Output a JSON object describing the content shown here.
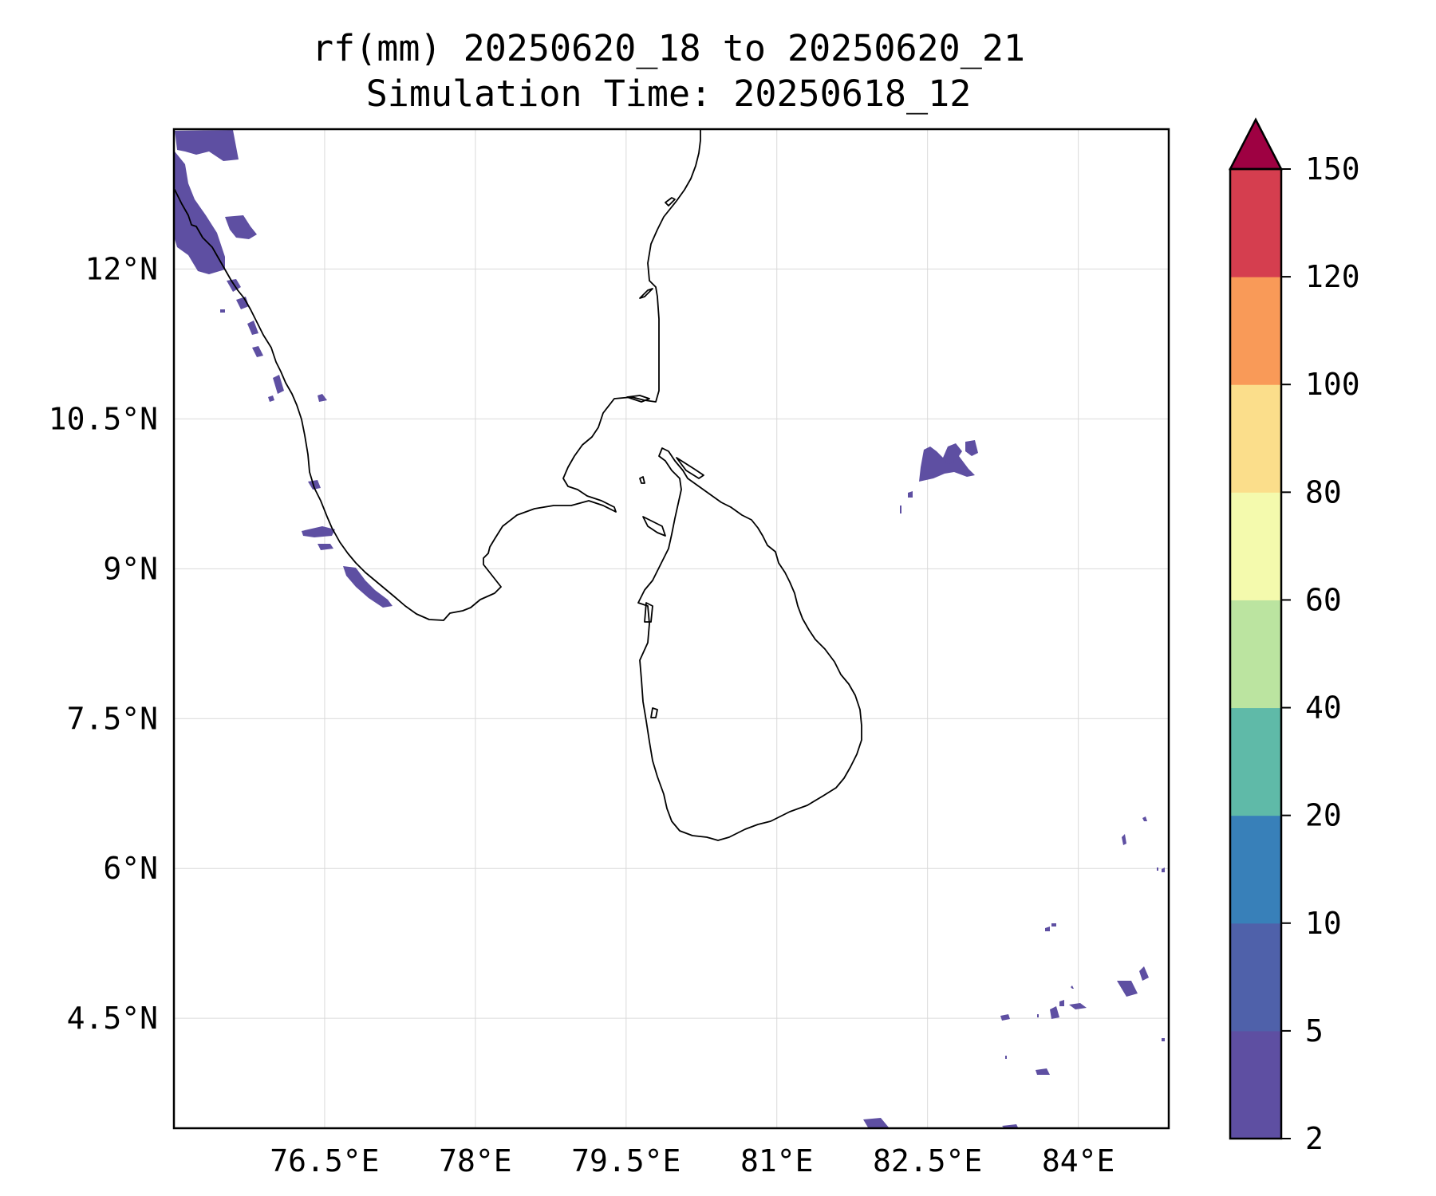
{
  "title": {
    "line1": "rf(mm) 20250620_18 to 20250620_21",
    "line2": "Simulation Time: 20250618_12"
  },
  "map": {
    "lon_range": [
      75.0,
      84.9
    ],
    "lat_range": [
      3.4,
      13.4
    ],
    "lon_ticks": [
      {
        "value": 76.5,
        "label": "76.5°E"
      },
      {
        "value": 78.0,
        "label": "78°E"
      },
      {
        "value": 79.5,
        "label": "79.5°E"
      },
      {
        "value": 81.0,
        "label": "81°E"
      },
      {
        "value": 82.5,
        "label": "82.5°E"
      },
      {
        "value": 84.0,
        "label": "84°E"
      }
    ],
    "lat_ticks": [
      {
        "value": 12.0,
        "label": "12°N"
      },
      {
        "value": 10.5,
        "label": "10.5°N"
      },
      {
        "value": 9.0,
        "label": "9°N"
      },
      {
        "value": 7.5,
        "label": "7.5°N"
      },
      {
        "value": 6.0,
        "label": "6°N"
      },
      {
        "value": 4.5,
        "label": "4.5°N"
      }
    ],
    "grid": true,
    "rain_color": "#5e4fa2"
  },
  "colorbar": {
    "levels": [
      "2",
      "5",
      "10",
      "20",
      "40",
      "60",
      "80",
      "100",
      "120",
      "150"
    ],
    "colors": [
      "#5e4fa2",
      "#4f61aa",
      "#3880b9",
      "#5fbaa8",
      "#bbe4a0",
      "#f4faad",
      "#fbde8b",
      "#f99a58",
      "#d53e4f"
    ],
    "extend_color": "#9e0142",
    "extend": "max"
  }
}
